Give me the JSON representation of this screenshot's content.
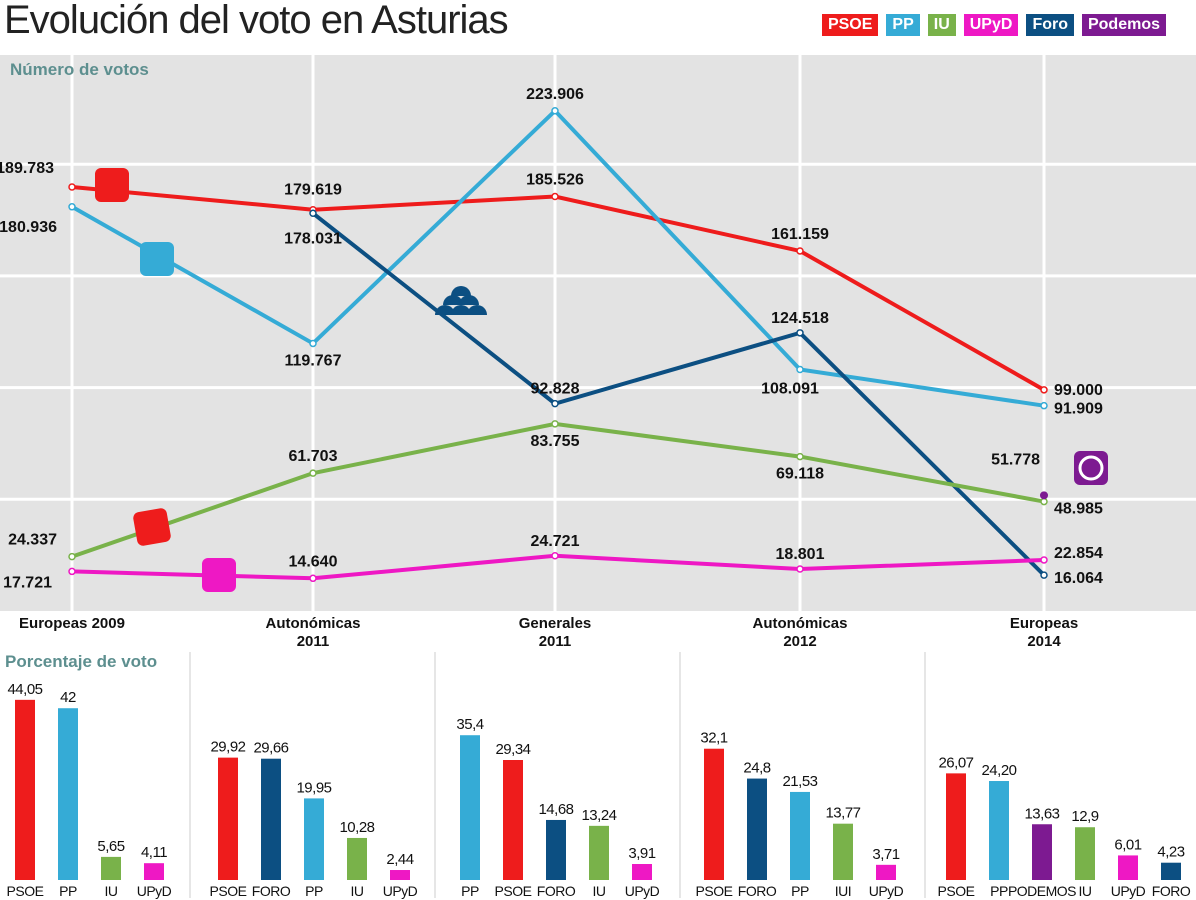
{
  "title": "Evolución del voto en Asturias",
  "legend": [
    {
      "name": "PSOE",
      "color": "#ee1c1c"
    },
    {
      "name": "PP",
      "color": "#35abd6"
    },
    {
      "name": "IU",
      "color": "#79b24a"
    },
    {
      "name": "UPyD",
      "color": "#ee18c4"
    },
    {
      "name": "Foro",
      "color": "#0c4f82"
    },
    {
      "name": "Podemos",
      "color": "#7d1a91"
    }
  ],
  "chart_data": [
    {
      "type": "line",
      "title": "Número de votos",
      "categories": [
        [
          "Europeas 2009"
        ],
        [
          "Autonómicas",
          "2011"
        ],
        [
          "Generales",
          "2011"
        ],
        [
          "Autonómicas",
          "2012"
        ],
        [
          "Europeas",
          "2014"
        ]
      ],
      "ylim": [
        0,
        240000
      ],
      "grid": true,
      "series": [
        {
          "name": "PSOE",
          "color": "#ee1c1c",
          "values": [
            189783,
            179619,
            185526,
            161159,
            99000
          ],
          "labels": [
            "189.783",
            "179.619",
            "185.526",
            "161.159",
            "99.000"
          ]
        },
        {
          "name": "PP",
          "color": "#35abd6",
          "values": [
            180936,
            119767,
            223906,
            108091,
            91909
          ],
          "labels": [
            "180.936",
            "119.767",
            "223.906",
            "108.091",
            "91.909"
          ]
        },
        {
          "name": "Foro",
          "color": "#0c4f82",
          "values": [
            null,
            178031,
            92828,
            124518,
            16064
          ],
          "labels": [
            "",
            "178.031",
            "92.828",
            "124.518",
            "16.064"
          ]
        },
        {
          "name": "IU",
          "color": "#79b24a",
          "values": [
            24337,
            61703,
            83755,
            69118,
            48985
          ],
          "labels": [
            "24.337",
            "61.703",
            "83.755",
            "69.118",
            "48.985"
          ]
        },
        {
          "name": "UPyD",
          "color": "#ee18c4",
          "values": [
            17721,
            14640,
            24721,
            18801,
            22854
          ],
          "labels": [
            "17.721",
            "14.640",
            "24.721",
            "18.801",
            "22.854"
          ]
        },
        {
          "name": "Podemos",
          "color": "#7d1a91",
          "values": [
            null,
            null,
            null,
            null,
            51778
          ],
          "labels": [
            "",
            "",
            "",
            "",
            "51.778"
          ]
        }
      ]
    },
    {
      "type": "bar",
      "title": "Porcentaje de voto",
      "groups": [
        {
          "election": "Europeas 2009",
          "bars": [
            {
              "party": "PSOE",
              "value": 44.05,
              "label": "44,05",
              "color": "#ee1c1c"
            },
            {
              "party": "PP",
              "value": 42,
              "label": "42",
              "color": "#35abd6"
            },
            {
              "party": "IU",
              "value": 5.65,
              "label": "5,65",
              "color": "#79b24a"
            },
            {
              "party": "UPyD",
              "value": 4.11,
              "label": "4,11",
              "color": "#ee18c4"
            }
          ]
        },
        {
          "election": "Autonómicas 2011",
          "bars": [
            {
              "party": "PSOE",
              "value": 29.92,
              "label": "29,92",
              "color": "#ee1c1c"
            },
            {
              "party": "FORO",
              "value": 29.66,
              "label": "29,66",
              "color": "#0c4f82"
            },
            {
              "party": "PP",
              "value": 19.95,
              "label": "19,95",
              "color": "#35abd6"
            },
            {
              "party": "IU",
              "value": 10.28,
              "label": "10,28",
              "color": "#79b24a"
            },
            {
              "party": "UPyD",
              "value": 2.44,
              "label": "2,44",
              "color": "#ee18c4"
            }
          ]
        },
        {
          "election": "Generales 2011",
          "bars": [
            {
              "party": "PP",
              "value": 35.4,
              "label": "35,4",
              "color": "#35abd6"
            },
            {
              "party": "PSOE",
              "value": 29.34,
              "label": "29,34",
              "color": "#ee1c1c"
            },
            {
              "party": "FORO",
              "value": 14.68,
              "label": "14,68",
              "color": "#0c4f82"
            },
            {
              "party": "IU",
              "value": 13.24,
              "label": "13,24",
              "color": "#79b24a"
            },
            {
              "party": "UPyD",
              "value": 3.91,
              "label": "3,91",
              "color": "#ee18c4"
            }
          ]
        },
        {
          "election": "Autonómicas 2012",
          "bars": [
            {
              "party": "PSOE",
              "value": 32.1,
              "label": "32,1",
              "color": "#ee1c1c"
            },
            {
              "party": "FORO",
              "value": 24.8,
              "label": "24,8",
              "color": "#0c4f82"
            },
            {
              "party": "PP",
              "value": 21.53,
              "label": "21,53",
              "color": "#35abd6"
            },
            {
              "party": "IUI",
              "value": 13.77,
              "label": "13,77",
              "color": "#79b24a"
            },
            {
              "party": "UPyD",
              "value": 3.71,
              "label": "3,71",
              "color": "#ee18c4"
            }
          ]
        },
        {
          "election": "Europeas 2014",
          "bars": [
            {
              "party": "PSOE",
              "value": 26.07,
              "label": "26,07",
              "color": "#ee1c1c"
            },
            {
              "party": "PP",
              "value": 24.2,
              "label": "24,20",
              "color": "#35abd6"
            },
            {
              "party": "PODEMOS",
              "value": 13.63,
              "label": "13,63",
              "color": "#7d1a91"
            },
            {
              "party": "IU",
              "value": 12.9,
              "label": "12,9",
              "color": "#79b24a"
            },
            {
              "party": "UPyD",
              "value": 6.01,
              "label": "6,01",
              "color": "#ee18c4"
            },
            {
              "party": "FORO",
              "value": 4.23,
              "label": "4,23",
              "color": "#0c4f82"
            }
          ]
        }
      ]
    }
  ]
}
